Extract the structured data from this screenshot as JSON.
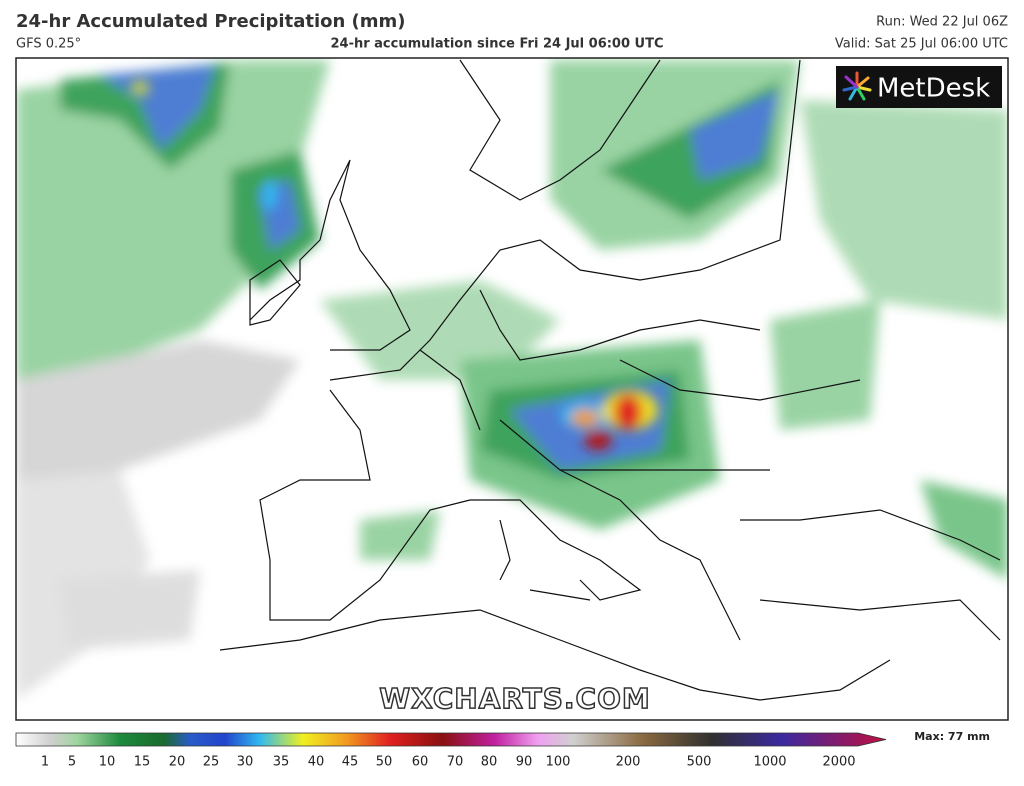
{
  "header": {
    "title": "24-hr Accumulated Precipitation (mm)",
    "model": "GFS 0.25°",
    "subtitle": "24-hr accumulation since Fri 24 Jul 06:00 UTC",
    "run": "Run: Wed 22 Jul 06Z",
    "valid": "Valid: Sat 25 Jul 06:00 UTC"
  },
  "logo": "MetDesk",
  "watermark": "WXCHARTS.COM",
  "legend": {
    "labels": [
      1,
      5,
      10,
      15,
      20,
      25,
      30,
      35,
      40,
      45,
      50,
      60,
      70,
      80,
      90,
      100,
      200,
      500,
      1000,
      2000
    ],
    "max_label": "Max: 77 mm"
  }
}
